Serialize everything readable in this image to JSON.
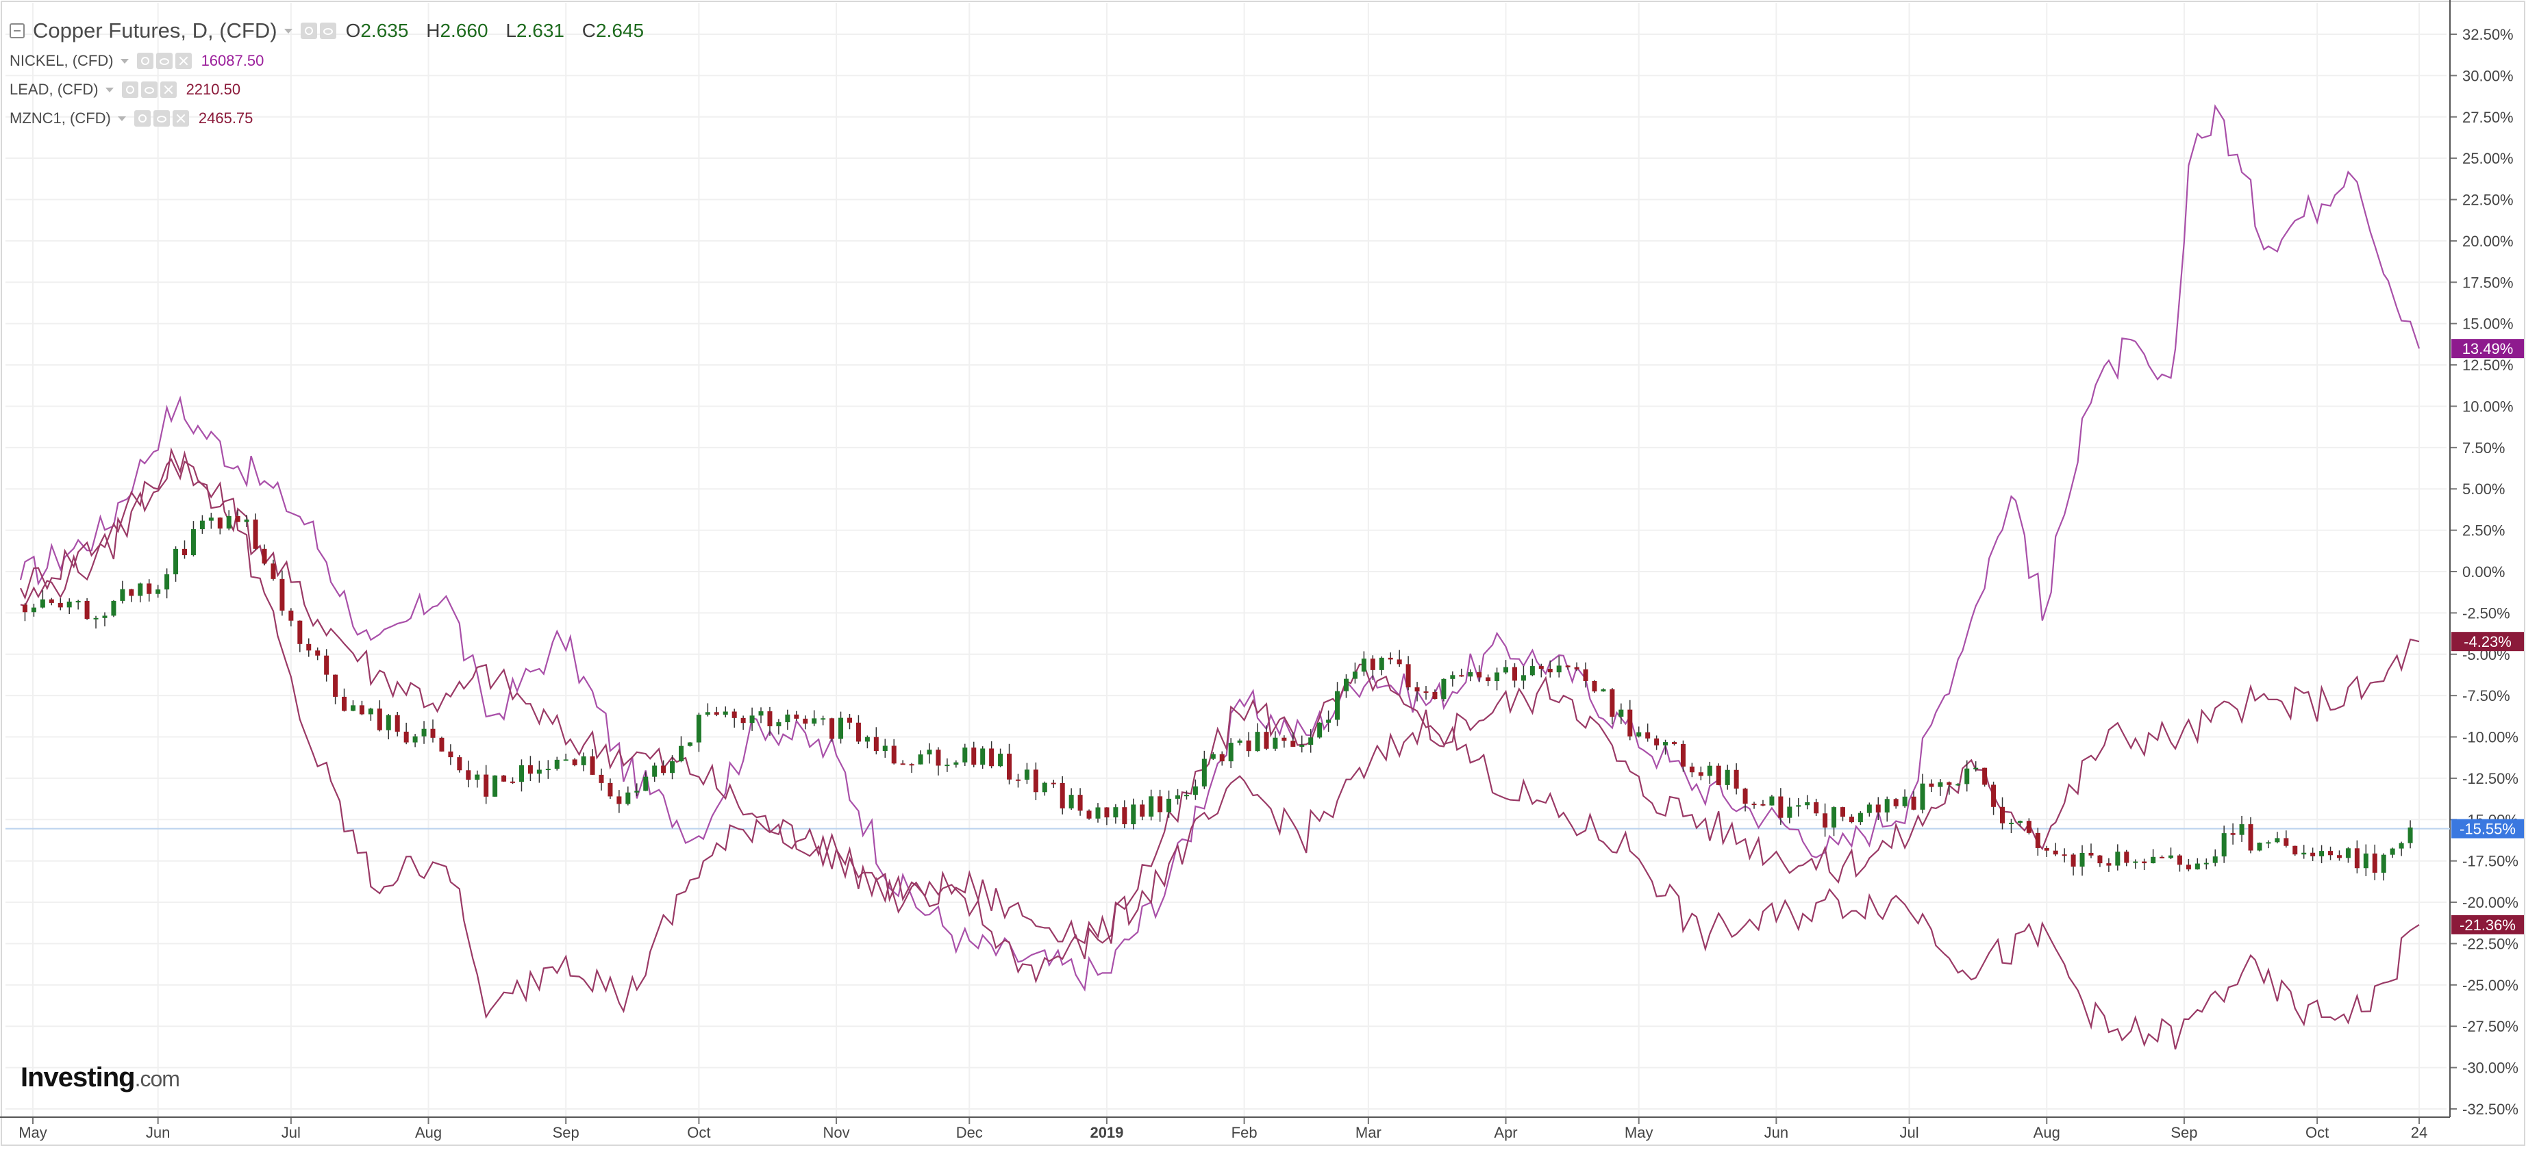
{
  "legend": {
    "main": {
      "title": "Copper Futures, D, (CFD)",
      "o_label": "O",
      "o": "2.635",
      "h_label": "H",
      "h": "2.660",
      "l_label": "L",
      "l": "2.631",
      "c_label": "C",
      "c": "2.645"
    },
    "overlays": [
      {
        "name": "NICKEL, (CFD)",
        "value": "16087.50",
        "color": "#9b1f9b"
      },
      {
        "name": "LEAD, (CFD)",
        "value": "2210.50",
        "color": "#8b1a3a"
      },
      {
        "name": "MZNC1, (CFD)",
        "value": "2465.75",
        "color": "#8b1a3a"
      }
    ]
  },
  "brand": {
    "name": "Investing",
    "domain": ".com"
  },
  "colors": {
    "up": "#1f7a2a",
    "down": "#9c1a24",
    "nickel": "#a950a9",
    "lead": "#9a3a66",
    "zinc": "#9a3a66",
    "baseline": "#bcd3ee",
    "price_tag": "#3a78e0"
  },
  "chart_data": {
    "type": "line",
    "title": "Copper Futures, D, (CFD)",
    "y_axis": {
      "unit": "%",
      "ylim": [
        -32.5,
        32.5
      ],
      "ticks": [
        "32.50%",
        "30.00%",
        "27.50%",
        "25.00%",
        "22.50%",
        "20.00%",
        "17.50%",
        "15.00%",
        "12.50%",
        "10.00%",
        "7.50%",
        "5.00%",
        "2.50%",
        "0.00%",
        "-2.50%",
        "-5.00%",
        "-7.50%",
        "-10.00%",
        "-12.50%",
        "-15.00%",
        "-17.50%",
        "-20.00%",
        "-22.50%",
        "-25.00%",
        "-27.50%",
        "-30.00%",
        "-32.50%"
      ]
    },
    "x_axis": {
      "range": [
        "2018-05-01",
        "2019-10-24"
      ],
      "ticks": [
        "May",
        "Jun",
        "Jul",
        "Aug",
        "Sep",
        "Oct",
        "Nov",
        "Dec",
        "2019",
        "Feb",
        "Mar",
        "Apr",
        "May",
        "Jun",
        "Jul",
        "Aug",
        "Sep",
        "Oct",
        "24"
      ]
    },
    "grid": true,
    "series": [
      {
        "name": "NICKEL, (CFD)",
        "kind": "line",
        "last_label": "13.49%",
        "x": [
          "2018-05-01",
          "2018-05-20",
          "2018-06-05",
          "2018-06-20",
          "2018-07-05",
          "2018-07-20",
          "2018-08-05",
          "2018-08-15",
          "2018-09-01",
          "2018-09-15",
          "2018-10-01",
          "2018-10-15",
          "2018-11-01",
          "2018-11-15",
          "2018-12-01",
          "2018-12-15",
          "2019-01-01",
          "2019-01-15",
          "2019-02-01",
          "2019-02-15",
          "2019-03-01",
          "2019-03-15",
          "2019-04-01",
          "2019-04-15",
          "2019-05-01",
          "2019-05-15",
          "2019-06-01",
          "2019-06-15",
          "2019-07-01",
          "2019-07-15",
          "2019-07-25",
          "2019-08-01",
          "2019-08-10",
          "2019-08-20",
          "2019-08-30",
          "2019-09-03",
          "2019-09-10",
          "2019-09-20",
          "2019-10-01",
          "2019-10-10",
          "2019-10-18",
          "2019-10-24"
        ],
        "values": [
          -0.5,
          2.5,
          10.0,
          6.5,
          3.0,
          -5.0,
          -1.0,
          -9.0,
          -4.0,
          -12.0,
          -16.0,
          -9.0,
          -11.0,
          -19.0,
          -22.5,
          -23.5,
          -24.5,
          -19.0,
          -8.0,
          -10.0,
          -6.0,
          -8.0,
          -4.5,
          -6.0,
          -10.0,
          -13.0,
          -15.0,
          -17.0,
          -14.0,
          -3.0,
          5.0,
          -3.0,
          10.0,
          13.5,
          10.5,
          26.0,
          27.5,
          20.0,
          22.0,
          25.0,
          17.0,
          13.49
        ]
      },
      {
        "name": "LEAD, (CFD)",
        "kind": "line",
        "last_label": "-4.23%",
        "x": [
          "2018-05-01",
          "2018-05-20",
          "2018-06-05",
          "2018-06-20",
          "2018-07-05",
          "2018-07-20",
          "2018-08-05",
          "2018-08-15",
          "2018-09-01",
          "2018-09-15",
          "2018-10-01",
          "2018-10-15",
          "2018-11-01",
          "2018-11-15",
          "2018-12-01",
          "2018-12-15",
          "2019-01-01",
          "2019-01-15",
          "2019-02-01",
          "2019-02-15",
          "2019-03-01",
          "2019-03-15",
          "2019-04-01",
          "2019-04-15",
          "2019-05-01",
          "2019-05-15",
          "2019-06-01",
          "2019-06-15",
          "2019-07-01",
          "2019-07-15",
          "2019-08-01",
          "2019-08-15",
          "2019-09-01",
          "2019-09-15",
          "2019-10-01",
          "2019-10-15",
          "2019-10-24"
        ],
        "values": [
          -1.0,
          2.0,
          7.0,
          3.0,
          -2.0,
          -6.0,
          -8.0,
          -6.0,
          -10.0,
          -11.0,
          -12.0,
          -15.0,
          -17.0,
          -19.0,
          -20.0,
          -24.0,
          -22.0,
          -16.0,
          -8.0,
          -10.0,
          -6.0,
          -10.0,
          -8.0,
          -7.0,
          -13.0,
          -15.0,
          -17.0,
          -18.0,
          -16.0,
          -12.0,
          -16.0,
          -10.0,
          -10.0,
          -8.0,
          -8.0,
          -7.0,
          -4.23
        ]
      },
      {
        "name": "MZNC1, (CFD)",
        "kind": "line",
        "last_label": "-21.36%",
        "x": [
          "2018-05-01",
          "2018-05-20",
          "2018-06-05",
          "2018-06-20",
          "2018-07-05",
          "2018-07-20",
          "2018-08-05",
          "2018-08-15",
          "2018-09-01",
          "2018-09-15",
          "2018-10-01",
          "2018-10-15",
          "2018-11-01",
          "2018-11-15",
          "2018-12-01",
          "2018-12-15",
          "2019-01-01",
          "2019-01-15",
          "2019-02-01",
          "2019-02-15",
          "2019-03-01",
          "2019-03-15",
          "2019-04-01",
          "2019-04-15",
          "2019-05-01",
          "2019-05-15",
          "2019-06-01",
          "2019-06-15",
          "2019-07-01",
          "2019-07-15",
          "2019-08-01",
          "2019-08-15",
          "2019-09-01",
          "2019-09-15",
          "2019-10-01",
          "2019-10-15",
          "2019-10-24"
        ],
        "values": [
          -2.0,
          1.0,
          7.0,
          3.0,
          -10.0,
          -19.0,
          -17.0,
          -27.0,
          -23.0,
          -26.0,
          -18.0,
          -15.0,
          -17.0,
          -20.0,
          -19.0,
          -21.0,
          -22.0,
          -18.0,
          -13.0,
          -16.0,
          -12.0,
          -9.0,
          -13.0,
          -15.0,
          -17.0,
          -22.0,
          -21.0,
          -20.0,
          -20.0,
          -24.0,
          -22.0,
          -28.0,
          -28.0,
          -24.0,
          -27.0,
          -26.0,
          -21.36
        ]
      },
      {
        "name": "Copper Futures, D, (CFD)",
        "kind": "candlestick",
        "last_label": "-15.55%",
        "x": [
          "2018-05-01",
          "2018-05-15",
          "2018-06-01",
          "2018-06-10",
          "2018-06-20",
          "2018-07-01",
          "2018-07-15",
          "2018-08-01",
          "2018-08-15",
          "2018-09-01",
          "2018-09-15",
          "2018-10-01",
          "2018-10-15",
          "2018-11-01",
          "2018-11-15",
          "2018-12-01",
          "2018-12-15",
          "2019-01-01",
          "2019-01-15",
          "2019-02-01",
          "2019-02-15",
          "2019-03-01",
          "2019-03-15",
          "2019-04-01",
          "2019-04-15",
          "2019-05-01",
          "2019-05-15",
          "2019-06-01",
          "2019-06-15",
          "2019-07-01",
          "2019-07-15",
          "2019-08-01",
          "2019-08-15",
          "2019-09-01",
          "2019-09-15",
          "2019-10-01",
          "2019-10-15",
          "2019-10-24"
        ],
        "values": [
          -2.0,
          -2.5,
          -1.0,
          3.0,
          3.0,
          -3.5,
          -8.5,
          -10.0,
          -13.0,
          -11.0,
          -14.0,
          -9.0,
          -9.0,
          -9.5,
          -11.0,
          -11.0,
          -12.5,
          -15.0,
          -14.0,
          -10.0,
          -11.0,
          -5.0,
          -7.0,
          -6.0,
          -5.5,
          -9.5,
          -12.0,
          -14.0,
          -15.0,
          -14.0,
          -12.0,
          -17.5,
          -17.5,
          -18.0,
          -16.0,
          -17.5,
          -17.5,
          -15.55
        ]
      }
    ]
  }
}
